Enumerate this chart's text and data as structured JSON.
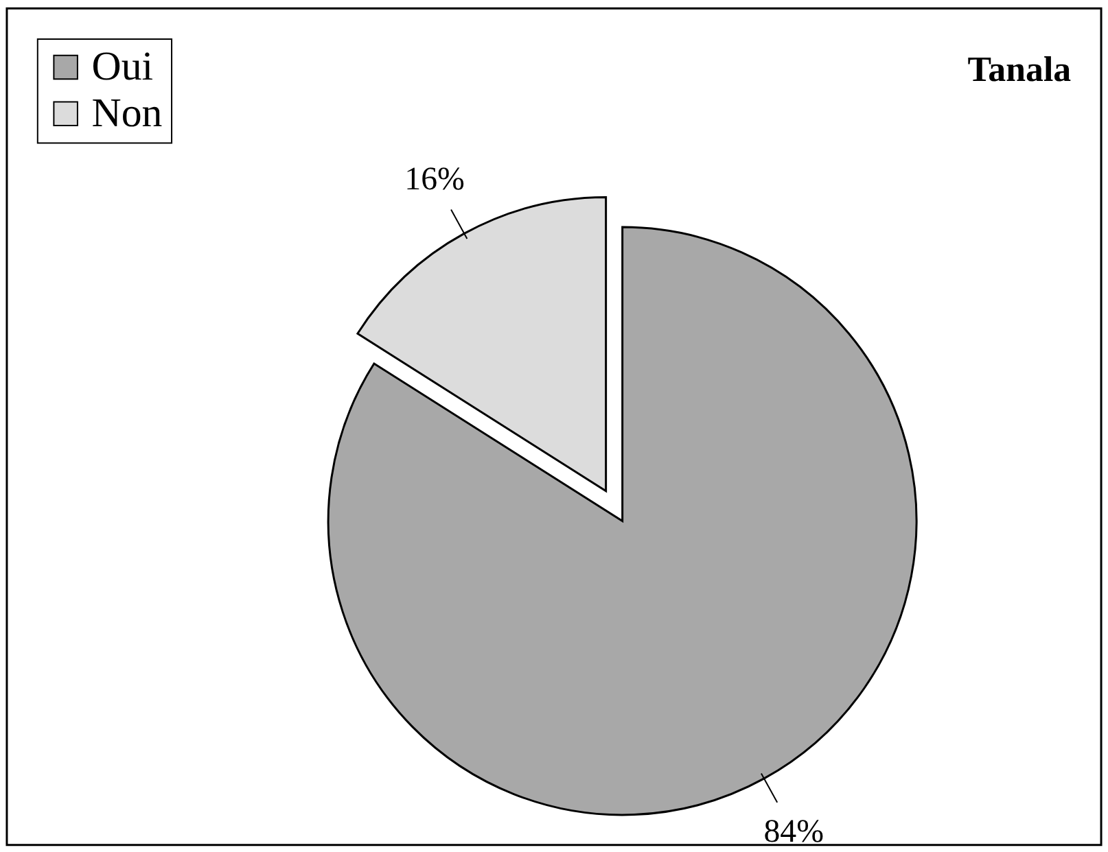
{
  "chart_data": {
    "type": "pie",
    "title": "Tanala",
    "categories": [
      "Oui",
      "Non"
    ],
    "values": [
      84,
      16
    ],
    "colors": [
      "#a8a8a8",
      "#dcdcdc"
    ],
    "value_labels": [
      "84%",
      "16%"
    ],
    "legend": "top left"
  }
}
